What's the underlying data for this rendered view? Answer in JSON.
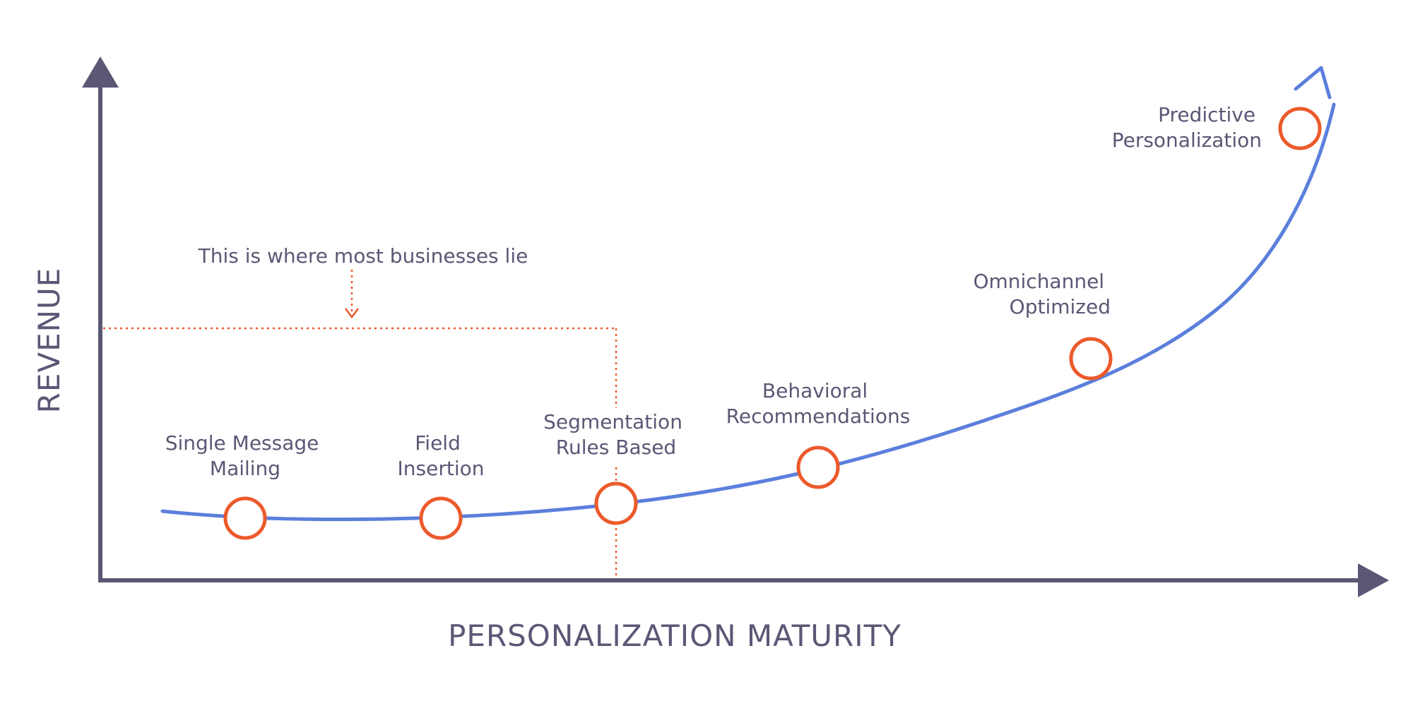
{
  "axes": {
    "x_title": "PERSONALIZATION MATURITY",
    "y_title": "REVENUE"
  },
  "annotation": {
    "text": "This is where most businesses lie"
  },
  "stages": [
    {
      "lines": [
        "Single Message",
        "Mailing"
      ]
    },
    {
      "lines": [
        "Field",
        "Insertion"
      ]
    },
    {
      "lines": [
        "Segmentation",
        "Rules Based"
      ]
    },
    {
      "lines": [
        "Behavioral",
        "Recommendations"
      ]
    },
    {
      "lines": [
        "Omnichannel",
        "Optimized"
      ]
    },
    {
      "lines": [
        "Predictive",
        "Personalization"
      ]
    }
  ],
  "colors": {
    "axis": "#5b5775",
    "curve": "#5b7fdc",
    "marker": "#ec5a2b",
    "text": "#5b5775"
  }
}
